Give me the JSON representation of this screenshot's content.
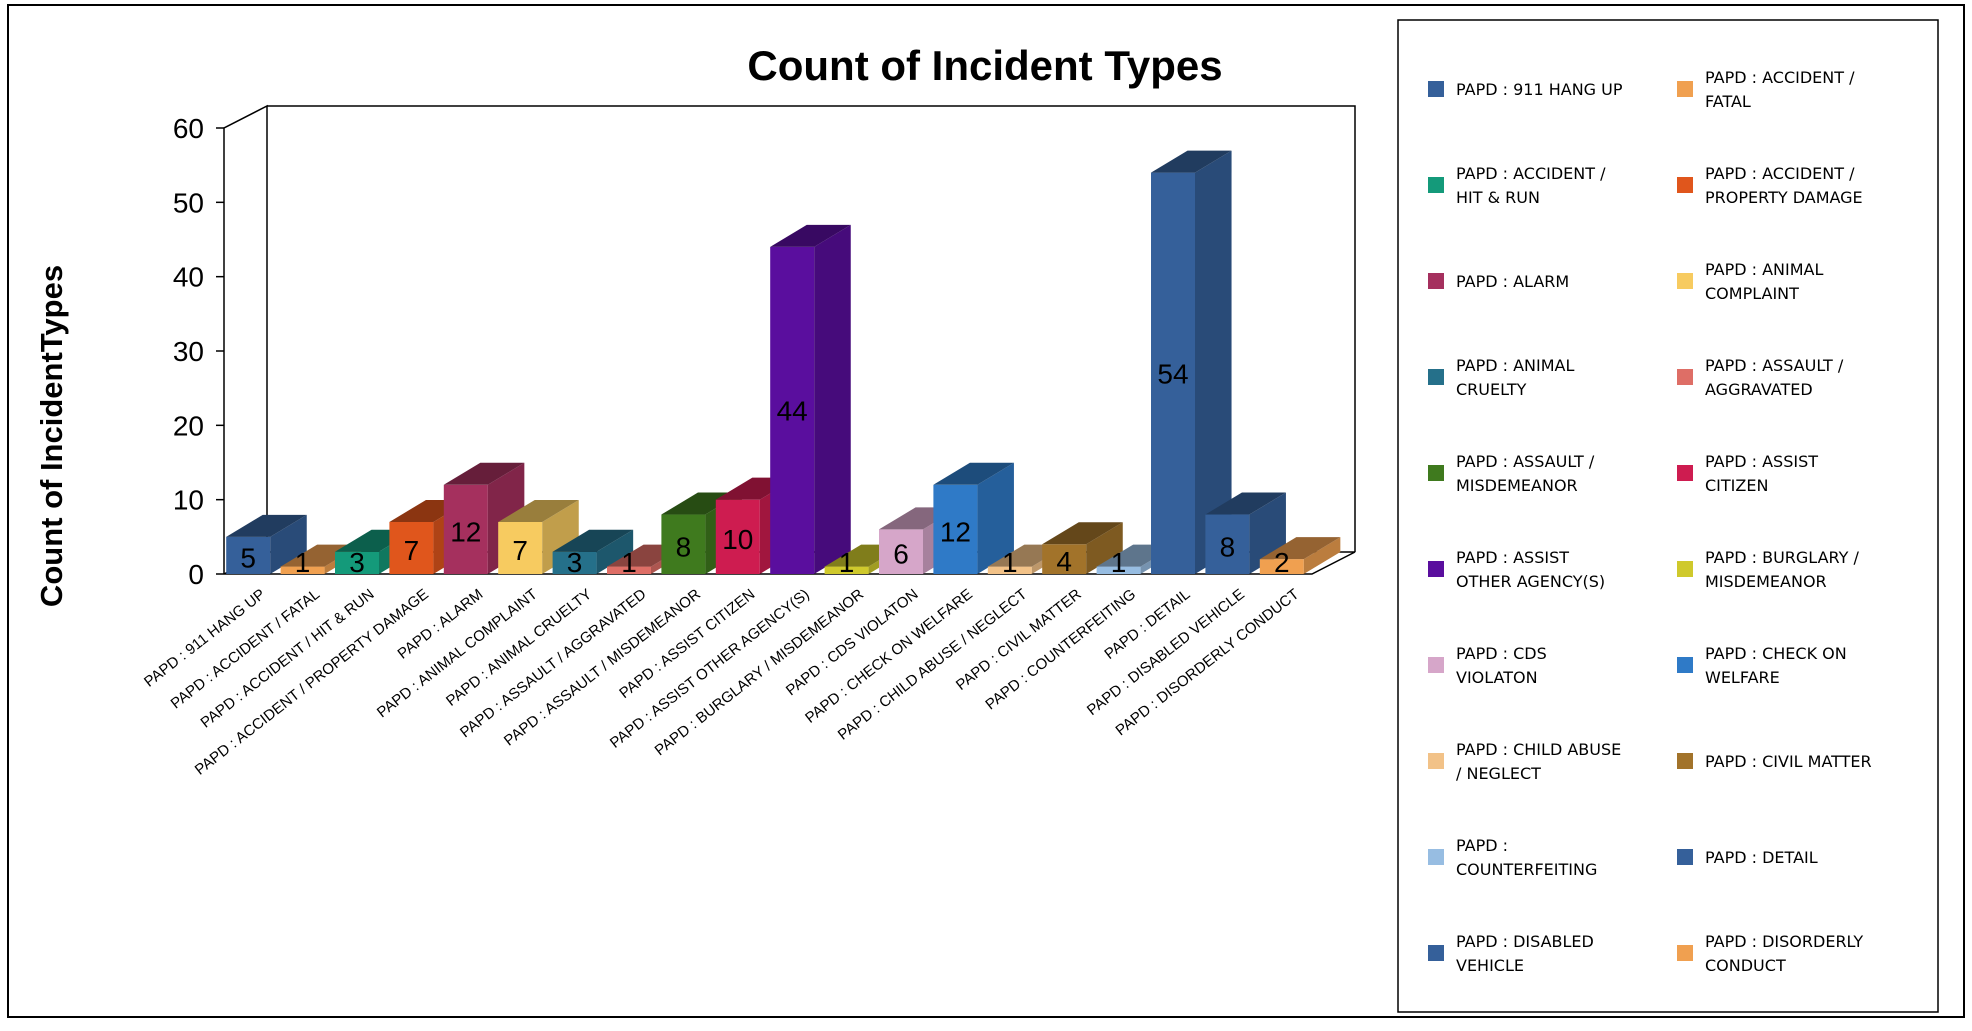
{
  "chart_data": {
    "type": "bar",
    "title": "Count of Incident Types",
    "xlabel": "",
    "ylabel": "Count of IncidentTypes",
    "ylim": [
      0,
      60
    ],
    "yticks": [
      0,
      10,
      20,
      30,
      40,
      50,
      60
    ],
    "three_d": true,
    "legend_position": "right",
    "categories": [
      "PAPD : 911 HANG UP",
      "PAPD : ACCIDENT / FATAL",
      "PAPD : ACCIDENT / HIT & RUN",
      "PAPD : ACCIDENT / PROPERTY DAMAGE",
      "PAPD : ALARM",
      "PAPD : ANIMAL COMPLAINT",
      "PAPD : ANIMAL CRUELTY",
      "PAPD : ASSAULT / AGGRAVATED",
      "PAPD : ASSAULT / MISDEMEANOR",
      "PAPD : ASSIST CITIZEN",
      "PAPD : ASSIST OTHER AGENCY(S)",
      "PAPD : BURGLARY / MISDEMEANOR",
      "PAPD : CDS VIOLATON",
      "PAPD : CHECK ON WELFARE",
      "PAPD : CHILD ABUSE / NEGLECT",
      "PAPD : CIVIL MATTER",
      "PAPD : COUNTERFEITING",
      "PAPD : DETAIL",
      "PAPD : DISABLED VEHICLE",
      "PAPD : DISORDERLY CONDUCT"
    ],
    "values": [
      5,
      1,
      3,
      7,
      12,
      7,
      3,
      1,
      8,
      10,
      44,
      1,
      6,
      12,
      1,
      4,
      1,
      54,
      8,
      2
    ],
    "colors": [
      "#35609A",
      "#F0A050",
      "#149A7A",
      "#E0561C",
      "#A5305E",
      "#F7CB60",
      "#25708A",
      "#DE6E66",
      "#3F7A1E",
      "#CE1C50",
      "#5A0E9E",
      "#CFC92C",
      "#D6A6C9",
      "#2F7AC7",
      "#F2C288",
      "#A2732A",
      "#97BDE2",
      "#35609A",
      "#35609A",
      "#F0A050"
    ],
    "legend": [
      [
        "PAPD : 911 HANG UP"
      ],
      [
        "PAPD : ACCIDENT /",
        "FATAL"
      ],
      [
        "PAPD : ACCIDENT /",
        "HIT & RUN"
      ],
      [
        "PAPD : ACCIDENT /",
        "PROPERTY DAMAGE"
      ],
      [
        "PAPD : ALARM"
      ],
      [
        "PAPD : ANIMAL",
        "COMPLAINT"
      ],
      [
        "PAPD : ANIMAL",
        "CRUELTY"
      ],
      [
        "PAPD : ASSAULT /",
        "AGGRAVATED"
      ],
      [
        "PAPD : ASSAULT /",
        "MISDEMEANOR"
      ],
      [
        "PAPD : ASSIST",
        "CITIZEN"
      ],
      [
        "PAPD : ASSIST",
        "OTHER AGENCY(S)"
      ],
      [
        "PAPD : BURGLARY /",
        "MISDEMEANOR"
      ],
      [
        "PAPD : CDS",
        "VIOLATON"
      ],
      [
        "PAPD : CHECK ON",
        "WELFARE"
      ],
      [
        "PAPD : CHILD ABUSE",
        "/ NEGLECT"
      ],
      [
        "PAPD : CIVIL MATTER"
      ],
      [
        "PAPD :",
        "COUNTERFEITING"
      ],
      [
        "PAPD : DETAIL"
      ],
      [
        "PAPD : DISABLED",
        "VEHICLE"
      ],
      [
        "PAPD : DISORDERLY",
        "CONDUCT"
      ]
    ]
  }
}
